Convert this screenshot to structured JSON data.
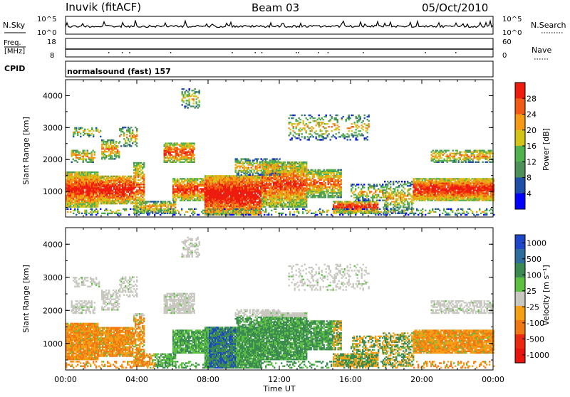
{
  "header": {
    "station": "Inuvik (fitACF)",
    "beam": "Beam 03",
    "date": "05/Oct/2010"
  },
  "panels": {
    "nsky_label": "N.Sky",
    "nsky_ticks": [
      "10^5",
      "10^0"
    ],
    "nsearch_label": "N.Search",
    "nsearch_ticks": [
      "10^5",
      "10^0"
    ],
    "freq_label_1": "Freq.",
    "freq_label_2": "[MHz]",
    "freq_ticks": [
      "18",
      "8"
    ],
    "nave_label": "Nave",
    "nave_ticks": [
      "60",
      "0"
    ],
    "cpid_label": "CPID",
    "cpid_value": "normalsound (fast) 157"
  },
  "colors": {
    "power": [
      "#0000ff",
      "#1f4fa8",
      "#4d9159",
      "#4fb24f",
      "#d4c41a",
      "#f59a14",
      "#f05a14",
      "#ee1c0f"
    ],
    "velocity": [
      "#1e46c8",
      "#2e6e9c",
      "#3a8a52",
      "#5cc040",
      "#c8c8c0",
      "#f5a014",
      "#f07814",
      "#ea2a10",
      "#e81410"
    ]
  },
  "chart_data": [
    {
      "type": "heatmap",
      "name": "power",
      "ylabel": "Slant Range [km]",
      "xlabel": "Time UT",
      "x_ticks": [
        "00:00",
        "04:00",
        "08:00",
        "12:00",
        "16:00",
        "20:00",
        "00:00"
      ],
      "y_ticks": [
        "1000",
        "2000",
        "3000",
        "4000"
      ],
      "ylim": [
        200,
        4500
      ],
      "colorbar_label": "Power [dB]",
      "colorbar_ticks": [
        "28",
        "24",
        "20",
        "16",
        "12",
        "8",
        "4"
      ],
      "value_range": [
        0,
        30
      ]
    },
    {
      "type": "heatmap",
      "name": "velocity",
      "ylabel": "Slant Range [km]",
      "xlabel": "Time UT",
      "x_ticks": [
        "00:00",
        "04:00",
        "08:00",
        "12:00",
        "16:00",
        "20:00",
        "00:00"
      ],
      "y_ticks": [
        "1000",
        "2000",
        "3000",
        "4000"
      ],
      "ylim": [
        200,
        4500
      ],
      "colorbar_label": "Velocity [m s⁻¹]",
      "colorbar_ticks": [
        "1000",
        "500",
        "100",
        "25",
        "-25",
        "-100",
        "-500",
        "-1000"
      ],
      "value_range": [
        -1000,
        1000
      ]
    }
  ]
}
